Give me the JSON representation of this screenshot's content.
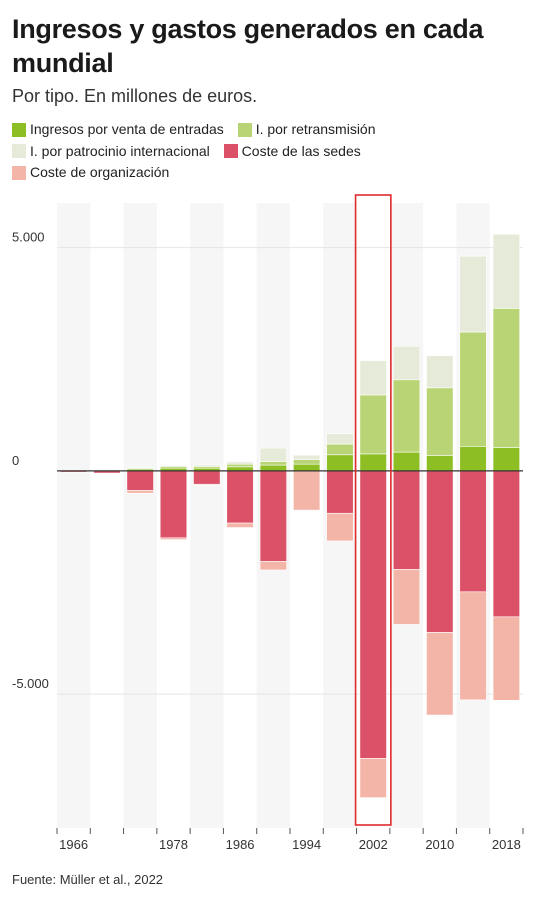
{
  "title": "Ingresos y gastos generados en cada mundial",
  "subtitle": "Por tipo. En millones de euros.",
  "source": "Fuente: Müller et al., 2022",
  "colors": {
    "ticket": "#8dbf25",
    "broadcast": "#b8d474",
    "sponsor": "#e6ead9",
    "venue": "#db5268",
    "organization": "#f4b5a9",
    "highlight": "#e02b2b",
    "band": "#f6f6f6"
  },
  "legend": [
    {
      "key": "ticket",
      "label": "Ingresos por venta de entradas"
    },
    {
      "key": "broadcast",
      "label": "I. por retransmisión"
    },
    {
      "key": "sponsor",
      "label": "I. por patrocinio internacional"
    },
    {
      "key": "venue",
      "label": "Coste de las sedes"
    },
    {
      "key": "organization",
      "label": "Coste de organización"
    }
  ],
  "chart_data": {
    "type": "bar",
    "stacked": true,
    "categories": [
      "1966",
      "1970",
      "1974",
      "1978",
      "1982",
      "1986",
      "1990",
      "1994",
      "1998",
      "2002",
      "2006",
      "2010",
      "2014",
      "2018"
    ],
    "tick_labels": [
      "1966",
      "",
      "",
      "1978",
      "",
      "1986",
      "",
      "1994",
      "",
      "2002",
      "",
      "2010",
      "",
      "2018"
    ],
    "highlight": "2002",
    "ylim": [
      -8000,
      6000
    ],
    "yticks": [
      5000,
      0,
      -5000
    ],
    "ytick_labels": [
      "5.000",
      "0",
      "-5.000"
    ],
    "series": [
      {
        "key": "ticket",
        "name": "Ingresos por venta de entradas",
        "values": [
          0,
          0,
          40,
          60,
          60,
          90,
          130,
          150,
          360,
          380,
          420,
          340,
          550,
          520
        ]
      },
      {
        "key": "broadcast",
        "name": "I. por retransmisión",
        "values": [
          0,
          0,
          20,
          40,
          40,
          60,
          80,
          100,
          240,
          1320,
          1620,
          1520,
          2560,
          3120
        ]
      },
      {
        "key": "sponsor",
        "name": "I. por patrocinio internacional",
        "values": [
          0,
          0,
          10,
          20,
          30,
          50,
          300,
          100,
          230,
          770,
          750,
          720,
          1700,
          1660
        ]
      },
      {
        "key": "venue",
        "name": "Coste de las sedes",
        "values": [
          -30,
          -50,
          -440,
          -1500,
          -300,
          -1170,
          -2030,
          0,
          -950,
          -6440,
          -2210,
          -3620,
          -2710,
          -3270
        ]
      },
      {
        "key": "organization",
        "name": "Coste de organización",
        "values": [
          0,
          0,
          -60,
          -40,
          -20,
          -100,
          -190,
          -880,
          -620,
          -880,
          -1230,
          -1850,
          -2420,
          -1870
        ]
      }
    ]
  }
}
